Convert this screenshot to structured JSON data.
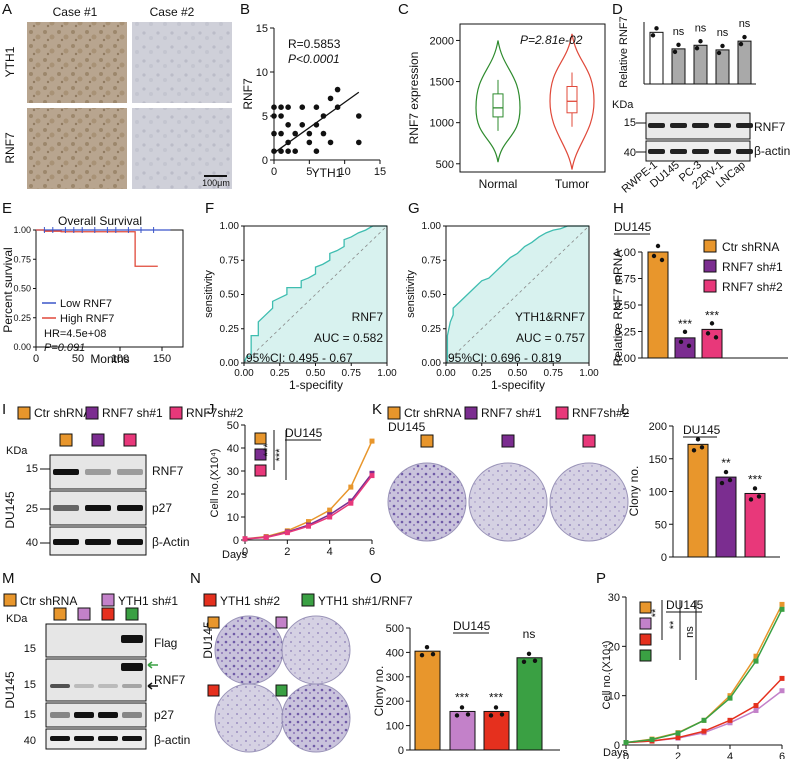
{
  "colors": {
    "ctr": "#e8962c",
    "sh1": "#7b2d90",
    "sh2": "#e8387a",
    "ythsh1": "#c381c9",
    "ythsh2": "#e5301e",
    "rescue": "#3aa043",
    "normal": "#2e8b2e",
    "tumor": "#e0493a",
    "roc": "#3fbdb0",
    "roc_fill": "#d8f2ef",
    "gray_bar": "#a9a9a9",
    "low": "#3a55c9",
    "high": "#e0493a"
  },
  "panelA": {
    "label": "A",
    "case1": "Case #1",
    "case2": "Case #2",
    "row1": "YTH1",
    "row2": "RNF7",
    "scale": "100μm"
  },
  "panelB": {
    "label": "B",
    "r_text": "R=0.5853",
    "p_text": "P<0.0001",
    "xlabel": "YTH1",
    "ylabel": "RNF7"
  },
  "panelC": {
    "label": "C",
    "p_text": "P=2.81e-02",
    "ylabel": "RNF7 expression",
    "groups": [
      "Normal",
      "Tumor"
    ]
  },
  "panelD": {
    "label": "D",
    "ylabel": "Relative RNF7",
    "kda": "KDa",
    "rows": [
      "RNF7",
      "β-actin"
    ],
    "mw": [
      "15",
      "40"
    ],
    "cells": [
      "RWPE-1",
      "DU145",
      "PC-3",
      "22RV-1",
      "LNCap"
    ],
    "sig": [
      "ns",
      "ns",
      "ns",
      "ns"
    ]
  },
  "panelE": {
    "label": "E",
    "title": "Overall Survival",
    "ylabel": "Percent survival",
    "xlabel": "Months",
    "legend_low": "Low RNF7",
    "legend_high": "High RNF7",
    "hr": "HR=4.5e+08",
    "p": "P=0.091"
  },
  "panelF": {
    "label": "F",
    "name": "RNF7",
    "auc": "AUC =  0.582",
    "ci": "95%CI:  0.495 - 0.67",
    "ylabel": "sensitivity",
    "xlabel": "1-specifity"
  },
  "panelG": {
    "label": "G",
    "name": "YTH1&RNF7",
    "auc": "AUC =  0.757",
    "ci": "95%CI:  0.696 - 0.819",
    "ylabel": "sensitivity",
    "xlabel": "1-specifity"
  },
  "panelH": {
    "label": "H",
    "cell": "DU145",
    "ylabel": "Relative RNF7 mRNA",
    "legend": [
      "Ctr shRNA",
      "RNF7 sh#1",
      "RNF7 sh#2"
    ],
    "sig": [
      "***",
      "***"
    ]
  },
  "panelI": {
    "label": "I",
    "legend": [
      "Ctr shRNA",
      "RNF7 sh#1",
      "RNF7sh#2"
    ],
    "kda": "KDa",
    "cell": "DU145",
    "rows": [
      "RNF7",
      "p27",
      "β-Actin"
    ],
    "mw": [
      "15",
      "25",
      "40"
    ]
  },
  "panelJ": {
    "label": "J",
    "cell": "DU145",
    "ylabel": "Cell no.(X10⁴)",
    "xlabel": "Days",
    "sig": [
      "***",
      "***"
    ]
  },
  "panelK": {
    "label": "K",
    "legend": [
      "Ctr shRNA",
      "RNF7 sh#1",
      "RNF7sh#2"
    ],
    "cell": "DU145"
  },
  "panelL": {
    "label": "L",
    "cell": "DU145",
    "ylabel": "Clony no.",
    "sig": [
      "**",
      "***"
    ]
  },
  "panelM": {
    "label": "M",
    "legend": [
      "Ctr shRNA",
      "YTH1 sh#1"
    ],
    "kda": "KDa",
    "cell": "DU145",
    "rows": [
      "Flag",
      "RNF7",
      "p27",
      "β-actin"
    ],
    "mw": [
      "15",
      "15",
      "15",
      "40"
    ]
  },
  "panelN": {
    "label": "N",
    "legend": [
      "YTH1 sh#2",
      "YTH1 sh#1/RNF7"
    ],
    "cell": "DU145"
  },
  "panelO": {
    "label": "O",
    "cell": "DU145",
    "ylabel": "Clony no.",
    "sig": [
      "***",
      "***",
      "ns"
    ]
  },
  "panelP": {
    "label": "P",
    "cell": "DU145",
    "ylabel": "Cell no.(X10⁴)",
    "xlabel": "Days",
    "sig": [
      "**",
      "**",
      "ns"
    ]
  },
  "chart_data": [
    {
      "id": "B",
      "type": "scatter",
      "title": "",
      "xlabel": "YTH1",
      "ylabel": "RNF7",
      "xlim": [
        0,
        15
      ],
      "ylim": [
        0,
        15
      ],
      "xticks": [
        0,
        5,
        10,
        15
      ],
      "yticks": [
        0,
        5,
        10,
        15
      ],
      "points": [
        [
          0,
          1
        ],
        [
          0,
          3
        ],
        [
          0,
          5
        ],
        [
          0,
          6
        ],
        [
          1,
          1
        ],
        [
          1,
          3
        ],
        [
          1,
          6
        ],
        [
          1,
          5
        ],
        [
          2,
          1
        ],
        [
          2,
          2
        ],
        [
          2,
          4
        ],
        [
          2,
          6
        ],
        [
          3,
          1
        ],
        [
          3,
          3
        ],
        [
          4,
          4
        ],
        [
          4,
          6
        ],
        [
          5,
          3
        ],
        [
          5,
          2
        ],
        [
          6,
          6
        ],
        [
          6,
          4
        ],
        [
          6,
          1
        ],
        [
          7,
          5
        ],
        [
          7,
          3
        ],
        [
          8,
          2
        ],
        [
          8,
          7
        ],
        [
          9,
          6
        ],
        [
          9,
          8
        ],
        [
          12,
          2
        ],
        [
          12,
          5
        ]
      ],
      "fit": [
        [
          0,
          0.8
        ],
        [
          12,
          7.7
        ]
      ]
    },
    {
      "id": "C",
      "type": "violin",
      "ylabel": "RNF7 expression",
      "ylim": [
        400,
        2200
      ],
      "yticks": [
        500,
        1000,
        1500,
        2000
      ],
      "groups": [
        {
          "name": "Normal",
          "min": 520,
          "q1": 1070,
          "median": 1180,
          "q3": 1350,
          "max": 2000
        },
        {
          "name": "Tumor",
          "min": 430,
          "q1": 1120,
          "median": 1260,
          "q3": 1440,
          "max": 2080
        }
      ]
    },
    {
      "id": "D",
      "type": "bar",
      "ylabel": "Relative RNF7",
      "ylim": [
        0,
        1.2
      ],
      "categories": [
        "RWPE-1",
        "DU145",
        "PC-3",
        "22RV-1",
        "LNCap"
      ],
      "values": [
        1.0,
        0.68,
        0.75,
        0.66,
        0.83
      ]
    },
    {
      "id": "E",
      "type": "line",
      "title": "Overall Survival",
      "xlabel": "Months",
      "ylabel": "Percent survival",
      "xlim": [
        0,
        175
      ],
      "ylim": [
        0,
        1.0
      ],
      "xticks": [
        0,
        50,
        100,
        150
      ],
      "yticks": [
        0.0,
        0.25,
        0.5,
        0.75,
        1.0
      ],
      "series": [
        {
          "name": "Low RNF7",
          "x": [
            0,
            160
          ],
          "y": [
            1.0,
            1.0
          ]
        },
        {
          "name": "High RNF7",
          "x": [
            0,
            10,
            10,
            30,
            30,
            118,
            118,
            145
          ],
          "y": [
            1.0,
            1.0,
            0.99,
            0.99,
            0.985,
            0.985,
            0.69,
            0.69
          ]
        }
      ]
    },
    {
      "id": "F",
      "type": "line",
      "title": "RNF7",
      "xlabel": "1-specifity",
      "ylabel": "sensitivity",
      "xlim": [
        0,
        1
      ],
      "ylim": [
        0,
        1
      ],
      "ticks": [
        0.0,
        0.25,
        0.5,
        0.75,
        1.0
      ],
      "auc": 0.582,
      "x": [
        0,
        0.02,
        0.05,
        0.05,
        0.1,
        0.1,
        0.15,
        0.2,
        0.2,
        0.3,
        0.3,
        0.4,
        0.4,
        0.45,
        0.5,
        0.5,
        0.55,
        0.6,
        0.6,
        0.65,
        0.7,
        0.7,
        0.75,
        0.8,
        0.85,
        0.9,
        1
      ],
      "y": [
        0,
        0.05,
        0.05,
        0.2,
        0.2,
        0.3,
        0.35,
        0.4,
        0.45,
        0.5,
        0.55,
        0.55,
        0.6,
        0.62,
        0.65,
        0.7,
        0.72,
        0.75,
        0.8,
        0.82,
        0.85,
        0.9,
        0.92,
        0.95,
        0.97,
        1,
        1
      ]
    },
    {
      "id": "G",
      "type": "line",
      "title": "YTH1&RNF7",
      "xlabel": "1-specifity",
      "ylabel": "sensitivity",
      "xlim": [
        0,
        1
      ],
      "ylim": [
        0,
        1
      ],
      "ticks": [
        0.0,
        0.25,
        0.5,
        0.75,
        1.0
      ],
      "auc": 0.757,
      "x": [
        0,
        0.01,
        0.01,
        0.03,
        0.05,
        0.05,
        0.1,
        0.15,
        0.2,
        0.25,
        0.3,
        0.35,
        0.4,
        0.45,
        0.5,
        0.55,
        0.6,
        0.65,
        0.7,
        0.75,
        0.8,
        0.85,
        0.9,
        0.95,
        1
      ],
      "y": [
        0,
        0,
        0.2,
        0.3,
        0.35,
        0.4,
        0.45,
        0.5,
        0.55,
        0.6,
        0.62,
        0.67,
        0.72,
        0.77,
        0.8,
        0.85,
        0.88,
        0.92,
        0.95,
        0.97,
        0.98,
        1,
        1,
        1,
        1
      ]
    },
    {
      "id": "H",
      "type": "bar",
      "ylabel": "Relative RNF7 mRNA",
      "ylim": [
        0,
        1.0
      ],
      "yticks": [
        0.0,
        0.25,
        0.5,
        0.75,
        1.0
      ],
      "categories": [
        "Ctr shRNA",
        "RNF7 sh#1",
        "RNF7 sh#2"
      ],
      "values": [
        1.0,
        0.19,
        0.27
      ]
    },
    {
      "id": "J",
      "type": "line",
      "xlabel": "Days",
      "ylabel": "Cell no.(X10⁴)",
      "xlim": [
        0,
        6
      ],
      "ylim": [
        0,
        50
      ],
      "xticks": [
        0,
        2,
        4,
        6
      ],
      "yticks": [
        0,
        10,
        20,
        30,
        40,
        50
      ],
      "x": [
        0,
        1,
        2,
        3,
        4,
        5,
        6
      ],
      "series": [
        {
          "name": "Ctr shRNA",
          "values": [
            0.5,
            1.5,
            4,
            8,
            13,
            23,
            43
          ]
        },
        {
          "name": "RNF7 sh#1",
          "values": [
            0.5,
            1.2,
            3.5,
            6.5,
            11,
            17,
            29
          ]
        },
        {
          "name": "RNF7 sh#2",
          "values": [
            0.5,
            1.1,
            3.2,
            6,
            10,
            16,
            28
          ]
        }
      ]
    },
    {
      "id": "L",
      "type": "bar",
      "ylabel": "Clony no.",
      "ylim": [
        0,
        200
      ],
      "yticks": [
        0,
        50,
        100,
        150,
        200
      ],
      "categories": [
        "Ctr shRNA",
        "RNF7 sh#1",
        "RNF7 sh#2"
      ],
      "values": [
        172,
        122,
        97
      ]
    },
    {
      "id": "O",
      "type": "bar",
      "ylabel": "Clony no.",
      "ylim": [
        0,
        500
      ],
      "yticks": [
        0,
        100,
        200,
        300,
        400,
        500
      ],
      "categories": [
        "Ctr shRNA",
        "YTH1 sh#1",
        "YTH1 sh#2",
        "YTH1 sh#1/RNF7"
      ],
      "values": [
        405,
        158,
        158,
        378
      ]
    },
    {
      "id": "P",
      "type": "line",
      "xlabel": "Days",
      "ylabel": "Cell no.(X10⁴)",
      "xlim": [
        0,
        6
      ],
      "ylim": [
        0,
        30
      ],
      "xticks": [
        0,
        2,
        4,
        6
      ],
      "yticks": [
        0,
        10,
        20,
        30
      ],
      "x": [
        0,
        1,
        2,
        3,
        4,
        5,
        6
      ],
      "series": [
        {
          "name": "Ctr shRNA",
          "values": [
            0.5,
            1.2,
            2.5,
            5,
            10,
            18,
            28.5
          ]
        },
        {
          "name": "YTH1 sh#1",
          "values": [
            0.5,
            0.8,
            1.4,
            2.5,
            4.5,
            7,
            11
          ]
        },
        {
          "name": "YTH1 sh#2",
          "values": [
            0.5,
            0.8,
            1.5,
            2.8,
            5,
            8,
            13.5
          ]
        },
        {
          "name": "YTH1 sh#1/RNF7",
          "values": [
            0.5,
            1.1,
            2.4,
            5,
            9.5,
            17,
            27.5
          ]
        }
      ]
    }
  ]
}
